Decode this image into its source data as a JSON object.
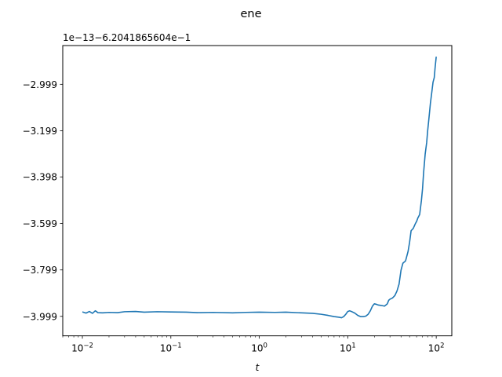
{
  "chart_data": {
    "type": "line",
    "title": "ene",
    "xlabel": "t",
    "ylabel": "",
    "x_scale": "log",
    "x_range": [
      0.006,
      150
    ],
    "x_ticks": [
      {
        "value": 0.01,
        "base": "10",
        "exp": "−2"
      },
      {
        "value": 0.1,
        "base": "10",
        "exp": "−1"
      },
      {
        "value": 1,
        "base": "10",
        "exp": "0"
      },
      {
        "value": 10,
        "base": "10",
        "exp": "1"
      },
      {
        "value": 100,
        "base": "10",
        "exp": "2"
      }
    ],
    "y_offset_label": "1e−13−6.2041865604e−1",
    "y_range": [
      -4.083,
      -2.832
    ],
    "y_ticks": [
      {
        "value": -2.999,
        "label": "−2.999"
      },
      {
        "value": -3.199,
        "label": "−3.199"
      },
      {
        "value": -3.398,
        "label": "−3.398"
      },
      {
        "value": -3.599,
        "label": "−3.599"
      },
      {
        "value": -3.799,
        "label": "−3.799"
      },
      {
        "value": -3.999,
        "label": "−3.999"
      }
    ],
    "grid": false,
    "series": [
      {
        "color": "#1f77b4",
        "x": [
          0.01,
          0.011,
          0.012,
          0.013,
          0.014,
          0.015,
          0.017,
          0.02,
          0.025,
          0.03,
          0.04,
          0.05,
          0.07,
          0.1,
          0.15,
          0.2,
          0.3,
          0.5,
          0.7,
          1,
          1.5,
          2,
          3,
          4,
          5,
          6,
          7,
          8,
          8.5,
          9,
          9.5,
          10,
          10.5,
          11,
          12,
          13,
          14,
          15,
          16,
          17,
          18,
          19,
          20,
          21,
          22,
          24,
          26,
          28,
          29,
          30,
          32,
          34,
          36,
          38,
          40,
          42,
          45,
          48,
          50,
          52,
          55,
          58,
          60,
          62,
          65,
          68,
          70,
          72,
          75,
          78,
          80,
          82,
          84,
          86,
          88,
          90,
          92,
          95,
          97,
          100
        ],
        "y": [
          -3.98,
          -3.985,
          -3.978,
          -3.986,
          -3.975,
          -3.983,
          -3.984,
          -3.982,
          -3.983,
          -3.979,
          -3.978,
          -3.981,
          -3.979,
          -3.98,
          -3.981,
          -3.983,
          -3.982,
          -3.984,
          -3.982,
          -3.981,
          -3.982,
          -3.981,
          -3.984,
          -3.986,
          -3.99,
          -3.995,
          -4.0,
          -4.003,
          -4.005,
          -4.0,
          -3.99,
          -3.978,
          -3.975,
          -3.978,
          -3.985,
          -3.995,
          -4.0,
          -4.0,
          -3.998,
          -3.99,
          -3.975,
          -3.955,
          -3.945,
          -3.947,
          -3.95,
          -3.952,
          -3.955,
          -3.945,
          -3.93,
          -3.925,
          -3.92,
          -3.91,
          -3.89,
          -3.86,
          -3.8,
          -3.77,
          -3.76,
          -3.72,
          -3.68,
          -3.63,
          -3.62,
          -3.6,
          -3.59,
          -3.575,
          -3.56,
          -3.5,
          -3.45,
          -3.38,
          -3.3,
          -3.25,
          -3.2,
          -3.16,
          -3.12,
          -3.08,
          -3.05,
          -3.02,
          -2.99,
          -2.97,
          -2.93,
          -2.88
        ]
      }
    ]
  }
}
